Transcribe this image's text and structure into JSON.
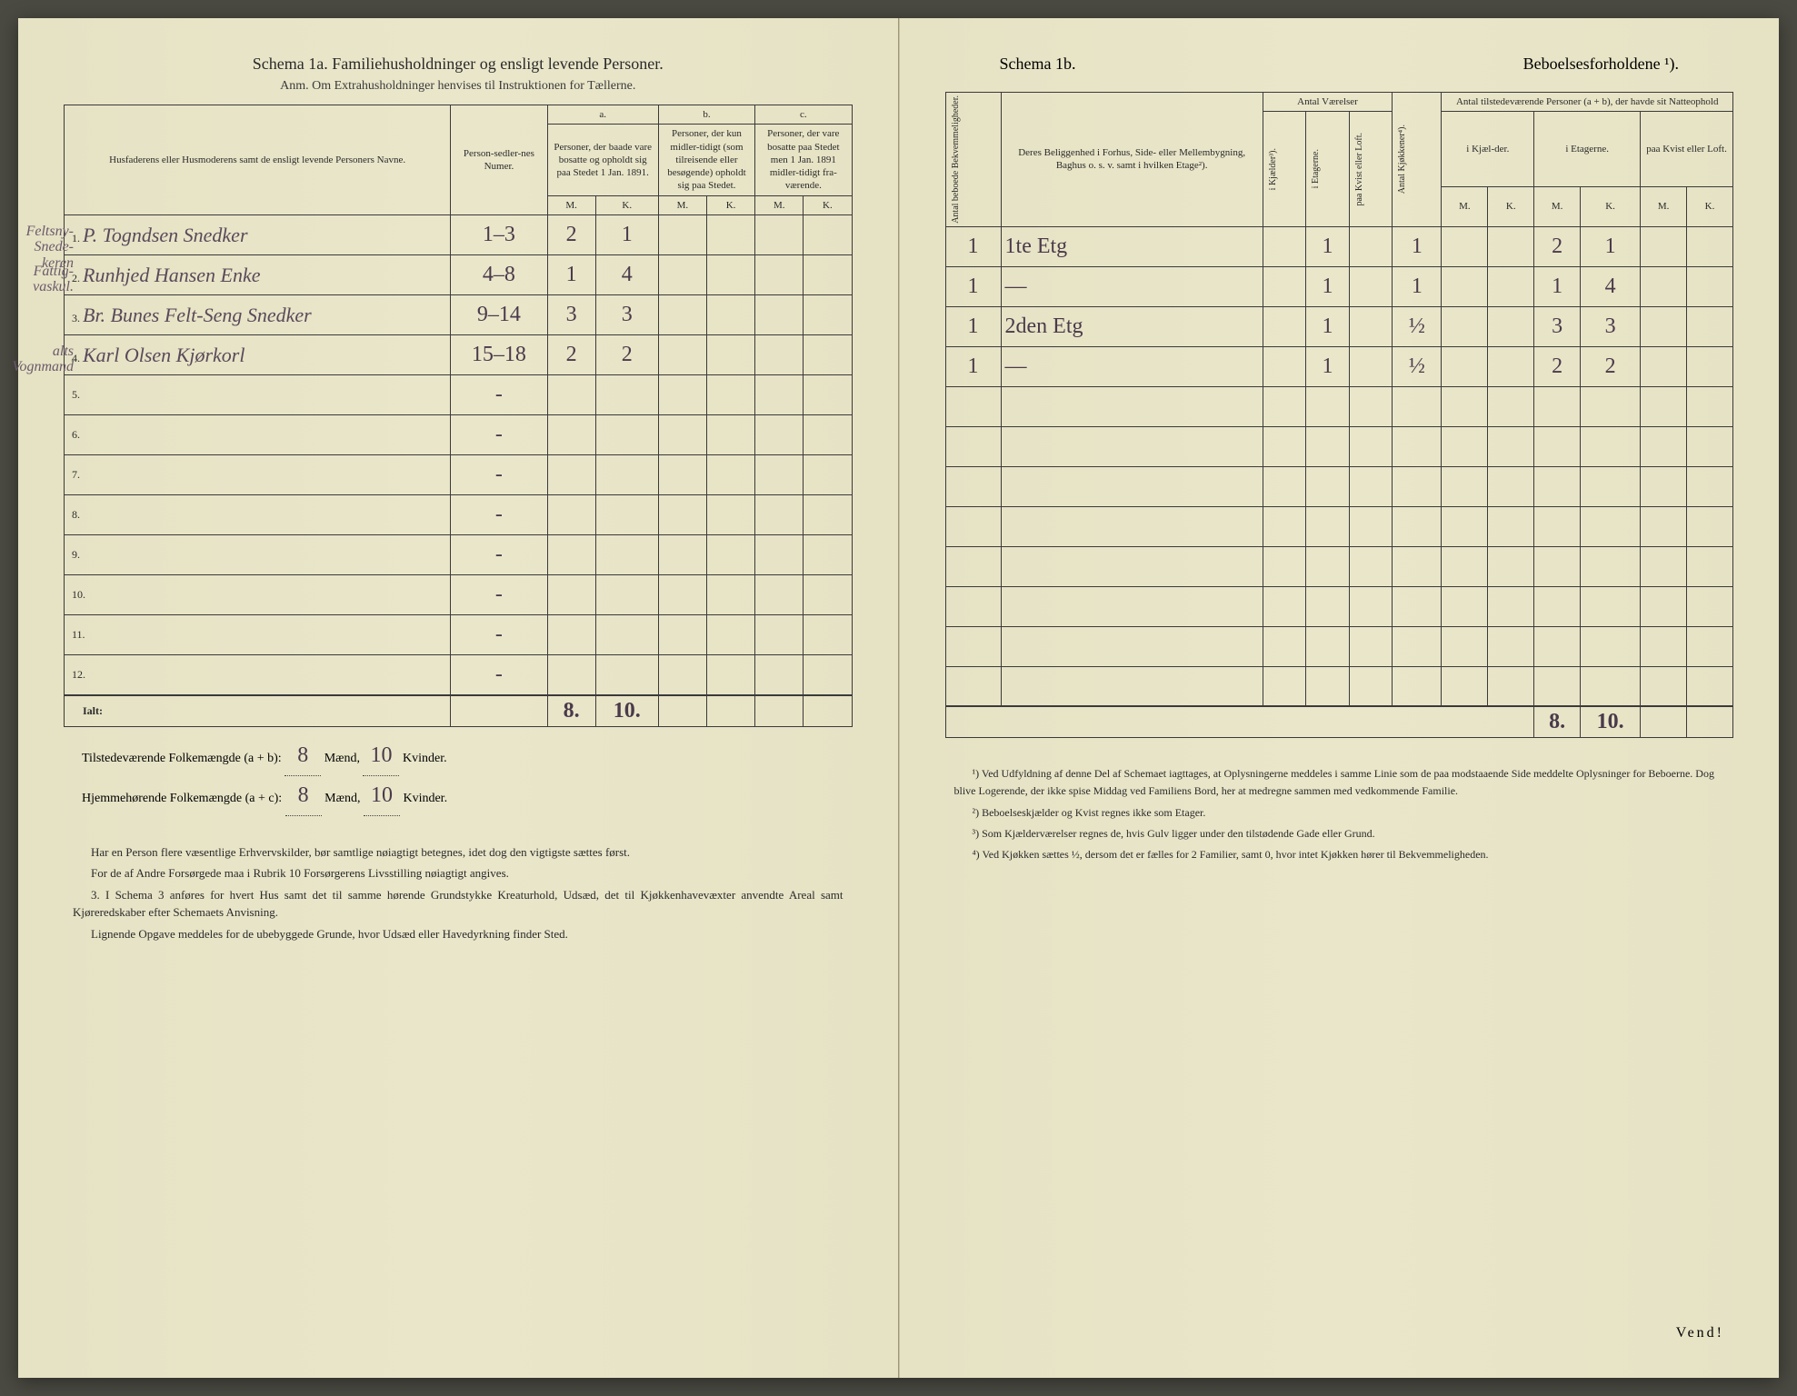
{
  "left": {
    "title": "Schema 1a. Familiehusholdninger og ensligt levende Personer.",
    "subtitle": "Anm. Om Extrahusholdninger henvises til Instruktionen for Tællerne.",
    "columns": {
      "names": "Husfaderens eller Husmoderens samt de ensligt levende Personers Navne.",
      "personNum": "Person-sedler-nes Numer.",
      "a_label": "a.",
      "a_text": "Personer, der baade vare bosatte og opholdt sig paa Stedet 1 Jan. 1891.",
      "b_label": "b.",
      "b_text": "Personer, der kun midler-tidigt (som tilreisende eller besøgende) opholdt sig paa Stedet.",
      "c_label": "c.",
      "c_text": "Personer, der vare bosatte paa Stedet men 1 Jan. 1891 midler-tidigt fra-værende.",
      "m": "M.",
      "k": "K."
    },
    "rows": [
      {
        "num": "1.",
        "margin": "Feltsny-Snede-keren",
        "name": "P. Togndsen Snedker",
        "pn": "1–3",
        "am": "2",
        "ak": "1",
        "bm": "",
        "bk": "",
        "cm": "",
        "ck": ""
      },
      {
        "num": "2.",
        "margin": "Fattig-vaskul.",
        "name": "Runhjed Hansen Enke",
        "pn": "4–8",
        "am": "1",
        "ak": "4",
        "bm": "",
        "bk": "",
        "cm": "",
        "ck": ""
      },
      {
        "num": "3.",
        "margin": "",
        "name": "Br. Bunes Felt-Seng Snedker",
        "pn": "9–14",
        "am": "3",
        "ak": "3",
        "bm": "",
        "bk": "",
        "cm": "",
        "ck": ""
      },
      {
        "num": "4.",
        "margin": "alts Vognmand",
        "name": "Karl Olsen Kjørkorl",
        "pn": "15–18",
        "am": "2",
        "ak": "2",
        "bm": "",
        "bk": "",
        "cm": "",
        "ck": ""
      },
      {
        "num": "5.",
        "name": "",
        "pn": "-",
        "am": "",
        "ak": "",
        "bm": "",
        "bk": "",
        "cm": "",
        "ck": ""
      },
      {
        "num": "6.",
        "name": "",
        "pn": "-",
        "am": "",
        "ak": "",
        "bm": "",
        "bk": "",
        "cm": "",
        "ck": ""
      },
      {
        "num": "7.",
        "name": "",
        "pn": "-",
        "am": "",
        "ak": "",
        "bm": "",
        "bk": "",
        "cm": "",
        "ck": ""
      },
      {
        "num": "8.",
        "name": "",
        "pn": "-",
        "am": "",
        "ak": "",
        "bm": "",
        "bk": "",
        "cm": "",
        "ck": ""
      },
      {
        "num": "9.",
        "name": "",
        "pn": "-",
        "am": "",
        "ak": "",
        "bm": "",
        "bk": "",
        "cm": "",
        "ck": ""
      },
      {
        "num": "10.",
        "name": "",
        "pn": "-",
        "am": "",
        "ak": "",
        "bm": "",
        "bk": "",
        "cm": "",
        "ck": ""
      },
      {
        "num": "11.",
        "name": "",
        "pn": "-",
        "am": "",
        "ak": "",
        "bm": "",
        "bk": "",
        "cm": "",
        "ck": ""
      },
      {
        "num": "12.",
        "name": "",
        "pn": "-",
        "am": "",
        "ak": "",
        "bm": "",
        "bk": "",
        "cm": "",
        "ck": ""
      }
    ],
    "ialt_label": "Ialt:",
    "ialt_am": "8.",
    "ialt_ak": "10.",
    "totals": {
      "line1_label": "Tilstedeværende Folkemængde (a + b):",
      "line1_m": "8",
      "line1_ksuffix": "Mænd,",
      "line1_k": "10",
      "line1_kend": "Kvinder.",
      "line2_label": "Hjemmehørende Folkemængde (a + c):",
      "line2_m": "8",
      "line2_ksuffix": "Mænd,",
      "line2_k": "10",
      "line2_kend": "Kvinder."
    },
    "instructions": [
      "Har en Person flere væsentlige Erhvervskilder, bør samtlige nøiagtigt betegnes, idet dog den vigtigste sættes først.",
      "For de af Andre Forsørgede maa i Rubrik 10 Forsørgerens Livsstilling nøiagtigt angives.",
      "3. I Schema 3 anføres for hvert Hus samt det til samme hørende Grundstykke Kreaturhold, Udsæd, det til Kjøkkenhavevæxter anvendte Areal samt Kjøreredskaber efter Schemaets Anvisning.",
      "Lignende Opgave meddeles for de ubebyggede Grunde, hvor Udsæd eller Havedyrkning finder Sted."
    ]
  },
  "right": {
    "title_left": "Schema 1b.",
    "title_right": "Beboelsesforholdene ¹).",
    "columns": {
      "antal_beboede": "Antal beboede Bekvemmeligheder.",
      "beliggenhed": "Deres Beliggenhed i Forhus, Side- eller Mellembygning, Baghus o. s. v. samt i hvilken Etage²).",
      "antal_vaerelser": "Antal Værelser",
      "i_kjaelder": "i Kjælder³).",
      "i_etagerne": "i Etagerne.",
      "paa_kvist": "paa Kvist eller Loft.",
      "antal_kjokkener": "Antal Kjøkkener⁴).",
      "tilstede": "Antal tilstedeværende Personer (a + b), der havde sit Natteophold",
      "i_kjael_der": "i Kjæl-der.",
      "i_etagerne2": "i Etagerne.",
      "paa_kvist2": "paa Kvist eller Loft.",
      "m": "M.",
      "k": "K."
    },
    "rows": [
      {
        "ab": "1",
        "bel": "1te Etg",
        "kj": "",
        "et": "1",
        "kv": "",
        "kk": "1",
        "km": "",
        "kk2": "",
        "em": "2",
        "ek": "1",
        "lm": "",
        "lk": ""
      },
      {
        "ab": "1",
        "bel": "—",
        "kj": "",
        "et": "1",
        "kv": "",
        "kk": "1",
        "km": "",
        "kk2": "",
        "em": "1",
        "ek": "4",
        "lm": "",
        "lk": ""
      },
      {
        "ab": "1",
        "bel": "2den Etg",
        "kj": "",
        "et": "1",
        "kv": "",
        "kk": "½",
        "km": "",
        "kk2": "",
        "em": "3",
        "ek": "3",
        "lm": "",
        "lk": ""
      },
      {
        "ab": "1",
        "bel": "—",
        "kj": "",
        "et": "1",
        "kv": "",
        "kk": "½",
        "km": "",
        "kk2": "",
        "em": "2",
        "ek": "2",
        "lm": "",
        "lk": ""
      },
      {
        "ab": "",
        "bel": "",
        "kj": "",
        "et": "",
        "kv": "",
        "kk": "",
        "km": "",
        "kk2": "",
        "em": "",
        "ek": "",
        "lm": "",
        "lk": ""
      },
      {
        "ab": "",
        "bel": "",
        "kj": "",
        "et": "",
        "kv": "",
        "kk": "",
        "km": "",
        "kk2": "",
        "em": "",
        "ek": "",
        "lm": "",
        "lk": ""
      },
      {
        "ab": "",
        "bel": "",
        "kj": "",
        "et": "",
        "kv": "",
        "kk": "",
        "km": "",
        "kk2": "",
        "em": "",
        "ek": "",
        "lm": "",
        "lk": ""
      },
      {
        "ab": "",
        "bel": "",
        "kj": "",
        "et": "",
        "kv": "",
        "kk": "",
        "km": "",
        "kk2": "",
        "em": "",
        "ek": "",
        "lm": "",
        "lk": ""
      },
      {
        "ab": "",
        "bel": "",
        "kj": "",
        "et": "",
        "kv": "",
        "kk": "",
        "km": "",
        "kk2": "",
        "em": "",
        "ek": "",
        "lm": "",
        "lk": ""
      },
      {
        "ab": "",
        "bel": "",
        "kj": "",
        "et": "",
        "kv": "",
        "kk": "",
        "km": "",
        "kk2": "",
        "em": "",
        "ek": "",
        "lm": "",
        "lk": ""
      },
      {
        "ab": "",
        "bel": "",
        "kj": "",
        "et": "",
        "kv": "",
        "kk": "",
        "km": "",
        "kk2": "",
        "em": "",
        "ek": "",
        "lm": "",
        "lk": ""
      },
      {
        "ab": "",
        "bel": "",
        "kj": "",
        "et": "",
        "kv": "",
        "kk": "",
        "km": "",
        "kk2": "",
        "em": "",
        "ek": "",
        "lm": "",
        "lk": ""
      }
    ],
    "totals_em": "8.",
    "totals_ek": "10.",
    "footnotes": [
      "¹) Ved Udfyldning af denne Del af Schemaet iagttages, at Oplysningerne meddeles i samme Linie som de paa modstaaende Side meddelte Oplysninger for Beboerne. Dog blive Logerende, der ikke spise Middag ved Familiens Bord, her at medregne sammen med vedkommende Familie.",
      "²) Beboelseskjælder og Kvist regnes ikke som Etager.",
      "³) Som Kjælderværelser regnes de, hvis Gulv ligger under den tilstødende Gade eller Grund.",
      "⁴) Ved Kjøkken sættes ½, dersom det er fælles for 2 Familier, samt 0, hvor intet Kjøkken hører til Bekvemmeligheden."
    ],
    "vend": "Vend!"
  }
}
